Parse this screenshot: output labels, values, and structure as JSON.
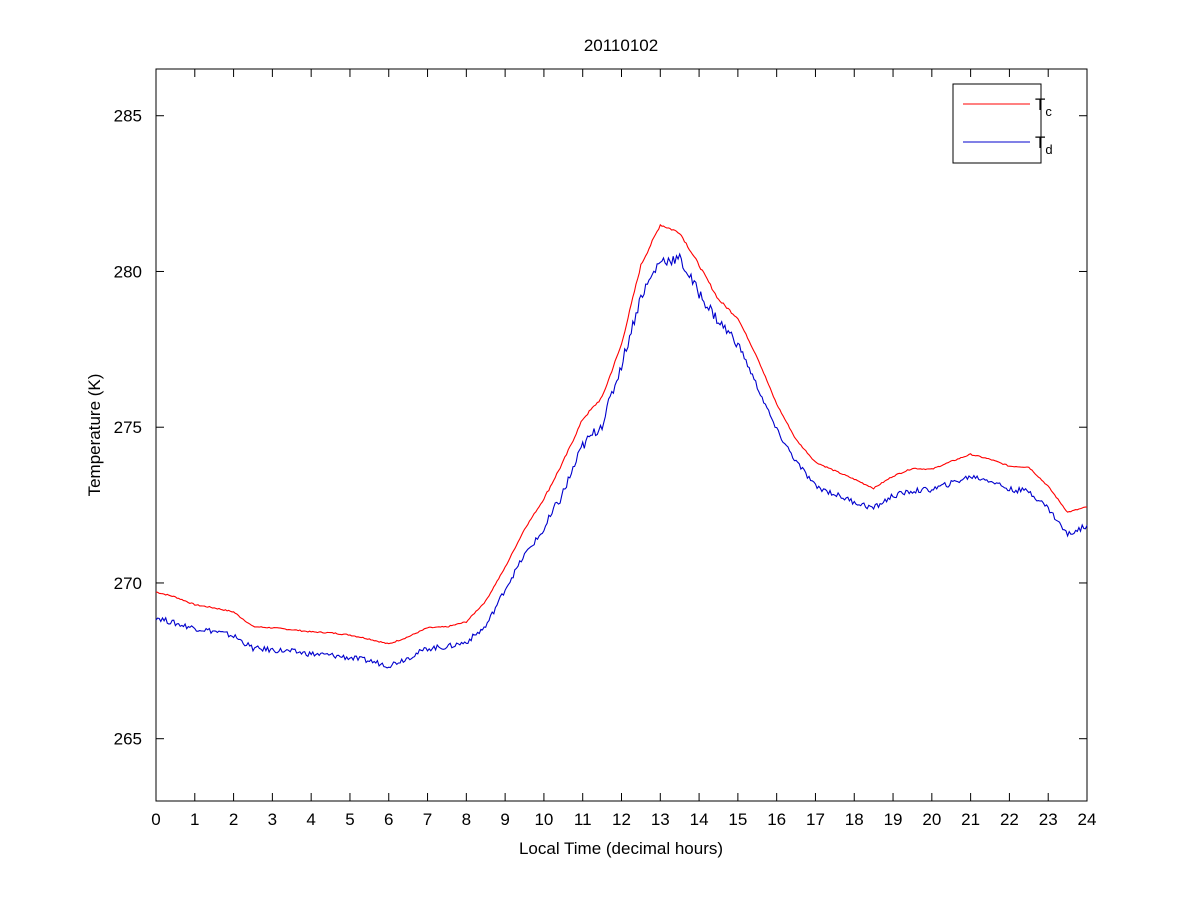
{
  "chart_data": {
    "type": "line",
    "title": "20110102",
    "xlabel": "Local Time (decimal hours)",
    "ylabel": "Temperature (K)",
    "xlim": [
      0,
      24
    ],
    "ylim": [
      263,
      286.5
    ],
    "xticks": [
      0,
      1,
      2,
      3,
      4,
      5,
      6,
      7,
      8,
      9,
      10,
      11,
      12,
      13,
      14,
      15,
      16,
      17,
      18,
      19,
      20,
      21,
      22,
      23,
      24
    ],
    "yticks": [
      265,
      270,
      275,
      280,
      285
    ],
    "grid": false,
    "legend_placement": "top-right",
    "x": [
      0,
      0.5,
      1,
      1.5,
      2,
      2.5,
      3,
      3.5,
      4,
      4.5,
      5,
      5.5,
      6,
      6.5,
      7,
      7.5,
      8,
      8.5,
      9,
      9.5,
      10,
      10.5,
      11,
      11.5,
      12,
      12.5,
      13,
      13.5,
      14,
      14.5,
      15,
      15.5,
      16,
      16.5,
      17,
      17.5,
      18,
      18.5,
      19,
      19.5,
      20,
      20.5,
      21,
      21.5,
      22,
      22.5,
      23,
      23.5,
      24
    ],
    "series": [
      {
        "name": "T",
        "subscript": "c",
        "color": "#ff0000",
        "values": [
          269.71,
          269.55,
          269.3,
          269.2,
          269.07,
          268.6,
          268.56,
          268.5,
          268.43,
          268.4,
          268.33,
          268.2,
          268.04,
          268.27,
          268.56,
          268.59,
          268.75,
          269.42,
          270.5,
          271.73,
          272.7,
          273.9,
          275.26,
          275.96,
          277.66,
          280.2,
          281.5,
          281.25,
          280.2,
          279.1,
          278.5,
          277.24,
          275.74,
          274.6,
          273.88,
          273.6,
          273.33,
          273.04,
          273.43,
          273.68,
          273.65,
          273.9,
          274.13,
          273.97,
          273.75,
          273.72,
          273.1,
          272.27,
          272.44
        ]
      },
      {
        "name": "T",
        "subscript": "d",
        "color": "#0000cc",
        "values": [
          268.9,
          268.7,
          268.55,
          268.45,
          268.3,
          267.9,
          267.85,
          267.8,
          267.72,
          267.68,
          267.6,
          267.5,
          267.35,
          267.6,
          267.9,
          267.95,
          268.1,
          268.6,
          269.8,
          270.9,
          271.7,
          272.9,
          274.4,
          275.1,
          277.0,
          279.2,
          280.35,
          280.4,
          279.3,
          278.4,
          277.7,
          276.3,
          274.9,
          273.9,
          273.1,
          272.85,
          272.6,
          272.4,
          272.8,
          272.95,
          273.0,
          273.2,
          273.42,
          273.3,
          273.0,
          272.95,
          272.4,
          271.55,
          271.85
        ]
      }
    ]
  }
}
